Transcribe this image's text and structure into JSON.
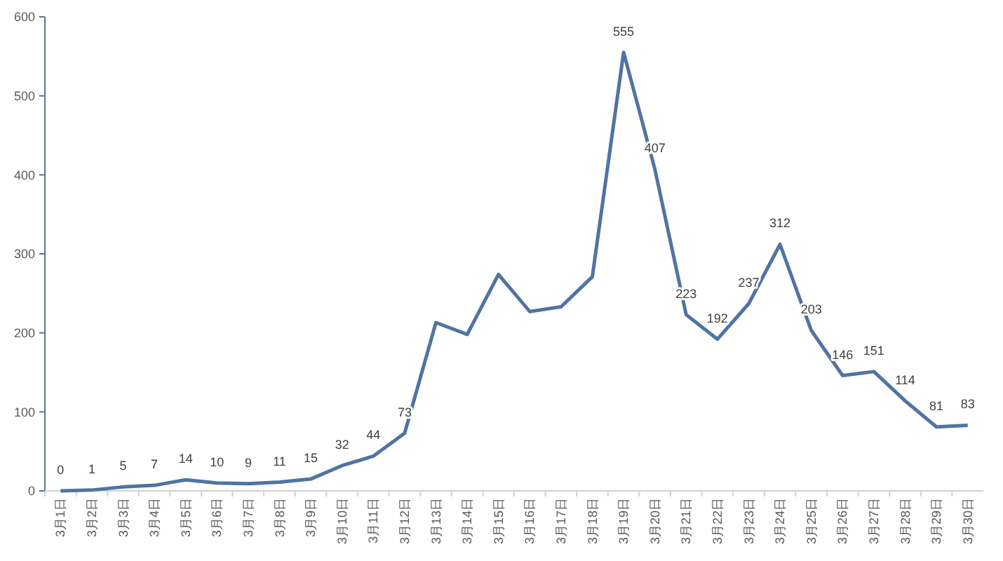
{
  "chart_data": {
    "type": "line",
    "categories": [
      "3月1日",
      "3月2日",
      "3月3日",
      "3月4日",
      "3月5日",
      "3月6日",
      "3月7日",
      "3月8日",
      "3月9日",
      "3月10日",
      "3月11日",
      "3月12日",
      "3月13日",
      "3月14日",
      "3月15日",
      "3月16日",
      "3月17日",
      "3月18日",
      "3月19日",
      "3月20日",
      "3月21日",
      "3月22日",
      "3月23日",
      "3月24日",
      "3月25日",
      "3月26日",
      "3月27日",
      "3月28日",
      "3月29日",
      "3月30日"
    ],
    "series": [
      {
        "color": "#4f74a3",
        "values": [
          0,
          1,
          5,
          7,
          14,
          10,
          9,
          11,
          15,
          32,
          44,
          73,
          213,
          198,
          274,
          227,
          233,
          271,
          555,
          407,
          223,
          192,
          237,
          312,
          203,
          146,
          151,
          114,
          81,
          83
        ],
        "value_labels": [
          "0",
          "1",
          "5",
          "7",
          "14",
          "10",
          "9",
          "11",
          "15",
          "32",
          "44",
          "73",
          null,
          null,
          null,
          null,
          null,
          null,
          "555",
          "407",
          "223",
          "192",
          "237",
          "312",
          "203",
          "146",
          "151",
          "114",
          "81",
          "83"
        ]
      }
    ],
    "ylim": [
      0,
      600
    ],
    "yticks": [
      0,
      100,
      200,
      300,
      400,
      500,
      600
    ],
    "grid": false,
    "marker": "none",
    "line_style": "solid"
  }
}
